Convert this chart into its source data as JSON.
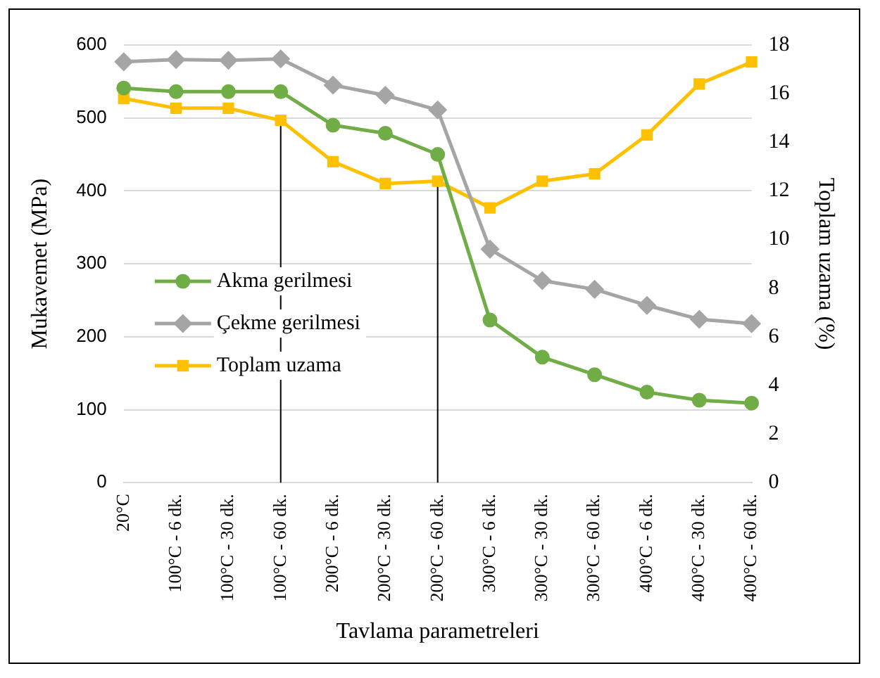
{
  "chart_data": {
    "type": "line",
    "xlabel": "Tavlama parametreleri",
    "ylabel": "Mukavemet (MPa)",
    "y2label": "Toplam uzama (%)",
    "categories": [
      "20°C",
      "100°C - 6 dk.",
      "100°C - 30 dk.",
      "100°C - 60 dk.",
      "200°C - 6 dk.",
      "200°C - 30 dk.",
      "200°C - 60 dk.",
      "300°C - 6 dk.",
      "300°C - 30 dk.",
      "300°C - 60 dk.",
      "400°C - 6 dk.",
      "400°C - 30 dk.",
      "400°C - 60 dk."
    ],
    "series": [
      {
        "name": "Akma gerilmesi",
        "color": "#70ad47",
        "marker": "circle",
        "values": [
          541,
          536,
          536,
          536,
          490,
          479,
          450,
          223,
          172,
          148,
          124,
          113,
          109
        ]
      },
      {
        "name": "Çekme gerilmesi",
        "color": "#a5a5a5",
        "marker": "diamond",
        "values": [
          577,
          580,
          579,
          581,
          545,
          531,
          511,
          320,
          277,
          265,
          243,
          224,
          218
        ]
      },
      {
        "name": "Toplam uzama",
        "color": "#ffc000",
        "marker": "square",
        "axis": "y2",
        "values": [
          15.8,
          15.4,
          15.4,
          14.9,
          13.2,
          12.3,
          12.4,
          11.3,
          12.4,
          12.7,
          14.3,
          16.4,
          17.3
        ]
      }
    ],
    "ylim": [
      0,
      600
    ],
    "yticks": [
      0,
      100,
      200,
      300,
      400,
      500,
      600
    ],
    "y2lim": [
      0,
      18
    ],
    "y2ticks": [
      0,
      2,
      4,
      6,
      8,
      10,
      12,
      14,
      16,
      18
    ],
    "ref_lines": [
      {
        "axis": "x",
        "value": "100°C - 60 dk.",
        "color": "#000000"
      },
      {
        "axis": "x",
        "value": "200°C - 60 dk.",
        "color": "#000000"
      }
    ],
    "grid": "y",
    "legend": "left",
    "line_style": "solid"
  }
}
